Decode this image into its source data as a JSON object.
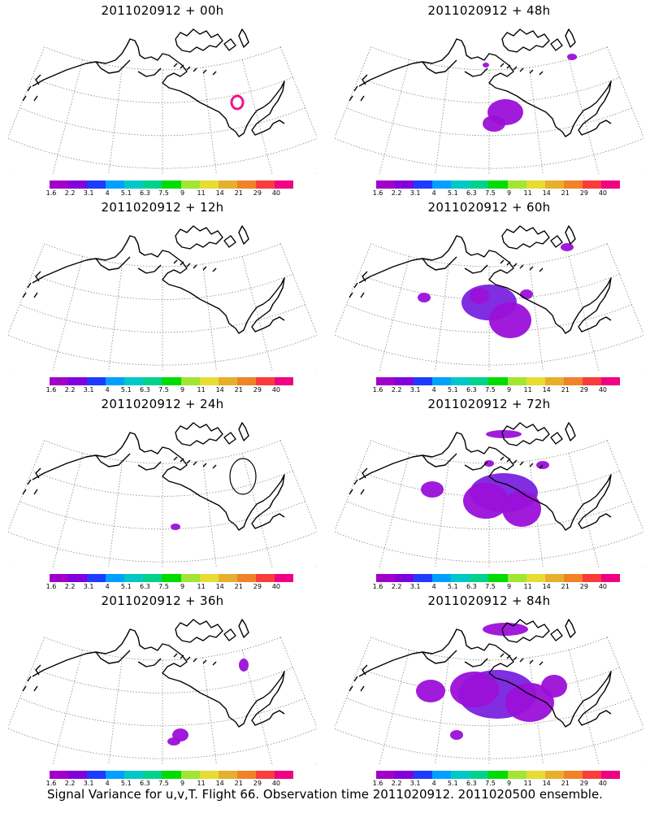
{
  "footer": "Signal Variance for u,v,T. Flight 66. Observation time 2011020912. 2011020500 ensemble.",
  "colorbar": {
    "colors": [
      "#a000c8",
      "#8200dc",
      "#1e3cff",
      "#00a0ff",
      "#00c8c8",
      "#00d28c",
      "#00dc00",
      "#a0e632",
      "#e6dc32",
      "#e6af2d",
      "#f08228",
      "#fa3c3c",
      "#f00082"
    ],
    "tick_labels": [
      "1.6",
      "2.2",
      "3.1",
      "4",
      "5.1",
      "6.3",
      "7.5",
      "9",
      "11",
      "14",
      "21",
      "29",
      "40"
    ]
  },
  "panels": [
    {
      "title": "2011020912 + 00h",
      "blobs": "p00"
    },
    {
      "title": "2011020912 + 48h",
      "blobs": "p48"
    },
    {
      "title": "2011020912 + 12h",
      "blobs": "p12"
    },
    {
      "title": "2011020912 + 60h",
      "blobs": "p60"
    },
    {
      "title": "2011020912 + 24h",
      "blobs": "p24"
    },
    {
      "title": "2011020912 + 72h",
      "blobs": "p72"
    },
    {
      "title": "2011020912 + 36h",
      "blobs": "p36"
    },
    {
      "title": "2011020912 + 84h",
      "blobs": "p84"
    }
  ],
  "signal_color": "#9b10d8",
  "signal_dark": "#7a22e0",
  "ring_color": "#f0148c"
}
